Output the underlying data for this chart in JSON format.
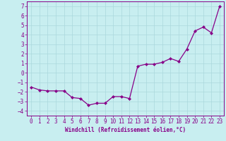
{
  "x": [
    0,
    1,
    2,
    3,
    4,
    5,
    6,
    7,
    8,
    9,
    10,
    11,
    12,
    13,
    14,
    15,
    16,
    17,
    18,
    19,
    20,
    21,
    22,
    23
  ],
  "y": [
    -1.5,
    -1.8,
    -1.9,
    -1.9,
    -1.9,
    -2.6,
    -2.7,
    -3.4,
    -3.2,
    -3.2,
    -2.5,
    -2.5,
    -2.7,
    0.7,
    0.9,
    0.9,
    1.1,
    1.5,
    1.2,
    2.5,
    4.4,
    4.8,
    4.2,
    7.0
  ],
  "line_color": "#880088",
  "marker": "D",
  "markersize": 2.0,
  "linewidth": 0.9,
  "xlabel": "Windchill (Refroidissement éolien,°C)",
  "xlim": [
    -0.5,
    23.5
  ],
  "ylim": [
    -4.5,
    7.5
  ],
  "yticks": [
    -4,
    -3,
    -2,
    -1,
    0,
    1,
    2,
    3,
    4,
    5,
    6,
    7
  ],
  "xticks": [
    0,
    1,
    2,
    3,
    4,
    5,
    6,
    7,
    8,
    9,
    10,
    11,
    12,
    13,
    14,
    15,
    16,
    17,
    18,
    19,
    20,
    21,
    22,
    23
  ],
  "background_color": "#c8eef0",
  "grid_color": "#aad8dc",
  "tick_color": "#880088",
  "label_color": "#880088",
  "xlabel_fontsize": 5.5,
  "tick_fontsize": 5.5
}
